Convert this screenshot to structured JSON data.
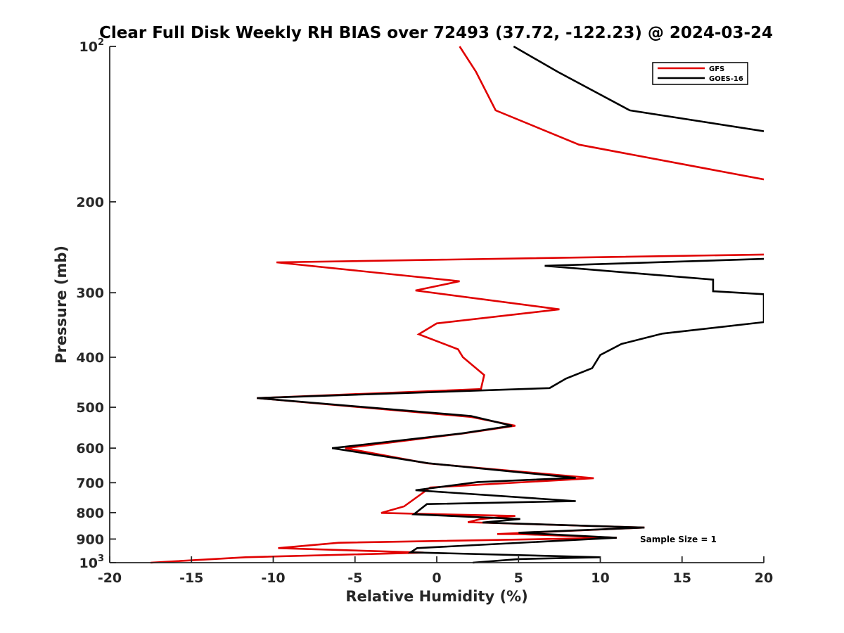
{
  "chart_data": {
    "type": "line",
    "title": "Clear Full Disk Weekly RH BIAS over 72493 (37.72, -122.23) @ 2024-03-24",
    "xlabel": "Relative Humidity (%)",
    "ylabel": "Pressure (mb)",
    "xlim": [
      -20,
      20
    ],
    "ylim": [
      100,
      1000
    ],
    "y_scale": "log",
    "y_reversed": true,
    "grid": false,
    "legend_position": "top-right",
    "x_ticks": [
      "-20",
      "-15",
      "-10",
      "-5",
      "0",
      "5",
      "10",
      "15",
      "20"
    ],
    "y_ticks": [
      {
        "value": 100,
        "base": "10",
        "exp": "2"
      },
      {
        "value": 200,
        "base": "200",
        "exp": ""
      },
      {
        "value": 300,
        "base": "300",
        "exp": ""
      },
      {
        "value": 400,
        "base": "400",
        "exp": ""
      },
      {
        "value": 500,
        "base": "500",
        "exp": ""
      },
      {
        "value": 600,
        "base": "600",
        "exp": ""
      },
      {
        "value": 700,
        "base": "700",
        "exp": ""
      },
      {
        "value": 800,
        "base": "800",
        "exp": ""
      },
      {
        "value": 900,
        "base": "900",
        "exp": ""
      },
      {
        "value": 1000,
        "base": "10",
        "exp": "3"
      }
    ],
    "annotation": "Sample Size = 1",
    "series": [
      {
        "name": "GFS",
        "color": "#e00000",
        "points": [
          [
            1.4,
            100
          ],
          [
            2.4,
            112
          ],
          [
            3.6,
            133
          ],
          [
            8.7,
            155
          ],
          [
            20.0,
            181
          ]
        ],
        "points2": [
          [
            20.0,
            253
          ],
          [
            -9.8,
            262
          ],
          [
            1.4,
            285
          ],
          [
            -1.3,
            297
          ],
          [
            7.5,
            323
          ],
          [
            0.0,
            344
          ],
          [
            -1.1,
            361
          ],
          [
            1.3,
            386
          ],
          [
            1.6,
            400
          ],
          [
            2.9,
            433
          ],
          [
            2.7,
            461
          ],
          [
            -11.0,
            480
          ],
          [
            2.1,
            522
          ],
          [
            4.8,
            543
          ],
          [
            1.6,
            562
          ],
          [
            -5.6,
            600
          ],
          [
            -0.6,
            642
          ],
          [
            9.6,
            686
          ],
          [
            -0.4,
            715
          ],
          [
            -2.0,
            778
          ],
          [
            -3.4,
            801
          ],
          [
            4.8,
            812
          ],
          [
            2.7,
            823
          ],
          [
            1.9,
            835
          ],
          [
            12.7,
            855
          ],
          [
            3.7,
            880
          ],
          [
            5.0,
            880
          ],
          [
            11.0,
            895
          ],
          [
            -6.0,
            915
          ],
          [
            -9.7,
            937
          ],
          [
            -0.8,
            956
          ],
          [
            -11.7,
            976
          ],
          [
            -17.5,
            1000
          ]
        ]
      },
      {
        "name": "GOES-16",
        "color": "#000000",
        "points": [
          [
            4.7,
            100
          ],
          [
            7.4,
            112
          ],
          [
            11.8,
            133
          ],
          [
            20.0,
            146
          ]
        ],
        "points2": [
          [
            20.0,
            258
          ],
          [
            6.6,
            266
          ],
          [
            16.9,
            283
          ],
          [
            16.9,
            298
          ],
          [
            20.0,
            302
          ],
          [
            20.0,
            342
          ],
          [
            13.8,
            360
          ],
          [
            11.3,
            377
          ],
          [
            10.0,
            396
          ],
          [
            9.5,
            420
          ],
          [
            7.9,
            440
          ],
          [
            6.9,
            459
          ],
          [
            -11.0,
            480
          ],
          [
            2.1,
            520
          ],
          [
            4.6,
            543
          ],
          [
            1.5,
            562
          ],
          [
            -6.4,
            600
          ],
          [
            -0.5,
            642
          ],
          [
            8.5,
            685
          ],
          [
            2.5,
            698
          ],
          [
            -1.3,
            724
          ],
          [
            8.5,
            760
          ],
          [
            -0.6,
            770
          ],
          [
            -1.4,
            806
          ],
          [
            5.1,
            823
          ],
          [
            2.8,
            836
          ],
          [
            12.7,
            855
          ],
          [
            5.0,
            875
          ],
          [
            11.0,
            895
          ],
          [
            -1.2,
            937
          ],
          [
            -1.6,
            955
          ],
          [
            10.0,
            976
          ],
          [
            5.0,
            984
          ],
          [
            2.2,
            1000
          ]
        ]
      }
    ]
  }
}
